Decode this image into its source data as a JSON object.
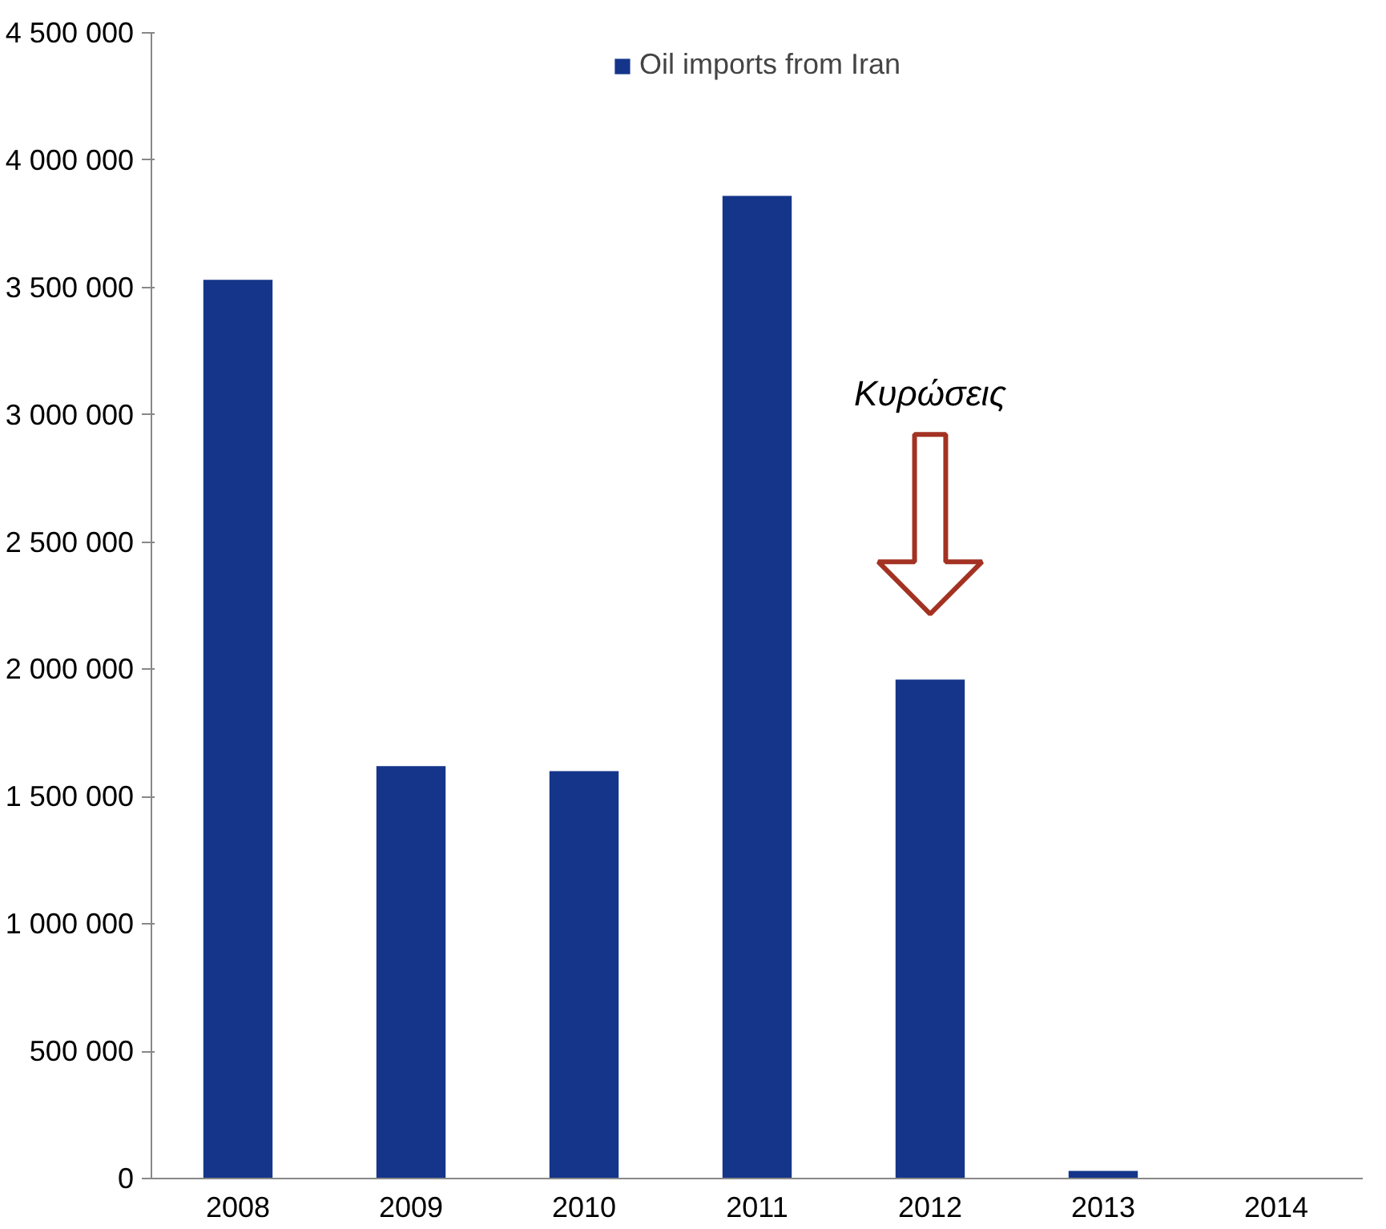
{
  "chart_data": {
    "type": "bar",
    "categories": [
      "2008",
      "2009",
      "2010",
      "2011",
      "2012",
      "2013",
      "2014"
    ],
    "series": [
      {
        "name": "Oil imports from Iran",
        "color": "#14358a",
        "values": [
          3530000,
          1620000,
          1600000,
          3860000,
          1960000,
          30000,
          0
        ]
      }
    ],
    "ylim": [
      0,
      4500000
    ],
    "yticks": [
      {
        "value": 0,
        "label": "0"
      },
      {
        "value": 500000,
        "label": "500 000"
      },
      {
        "value": 1000000,
        "label": "1 000 000"
      },
      {
        "value": 1500000,
        "label": "1 500 000"
      },
      {
        "value": 2000000,
        "label": "2 000 000"
      },
      {
        "value": 2500000,
        "label": "2 500 000"
      },
      {
        "value": 3000000,
        "label": "3 000 000"
      },
      {
        "value": 3500000,
        "label": "3 500 000"
      },
      {
        "value": 4000000,
        "label": "4 000 000"
      },
      {
        "value": 4500000,
        "label": "4 500 000"
      }
    ],
    "annotations": [
      "Κυρώσεις"
    ],
    "grid": false,
    "legend": "top"
  }
}
